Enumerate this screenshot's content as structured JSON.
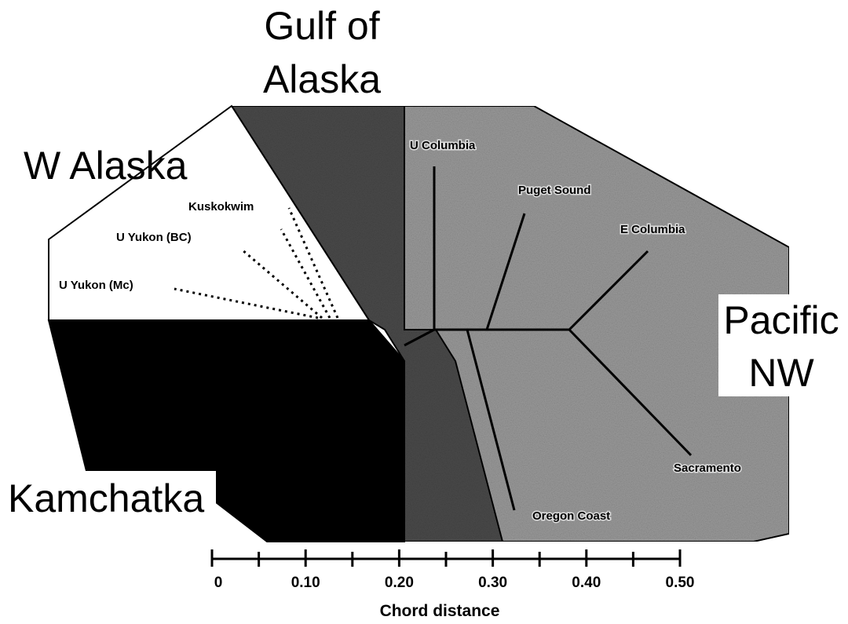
{
  "regions": {
    "gulf_of_alaska": [
      "Gulf of",
      "Alaska"
    ],
    "w_alaska": "W Alaska",
    "pacific_nw": [
      "Pacific",
      "NW"
    ],
    "kamchatka": "Kamchatka"
  },
  "populations": [
    "Kuskokwim",
    "U Yukon (BC)",
    "U Yukon (Mc)",
    "U Columbia",
    "Puget Sound",
    "E Columbia",
    "Sacramento",
    "Oregon Coast"
  ],
  "scale": {
    "label": "Chord distance",
    "ticks": [
      "0",
      "0.10",
      "0.20",
      "0.30",
      "0.40",
      "0.50"
    ]
  }
}
